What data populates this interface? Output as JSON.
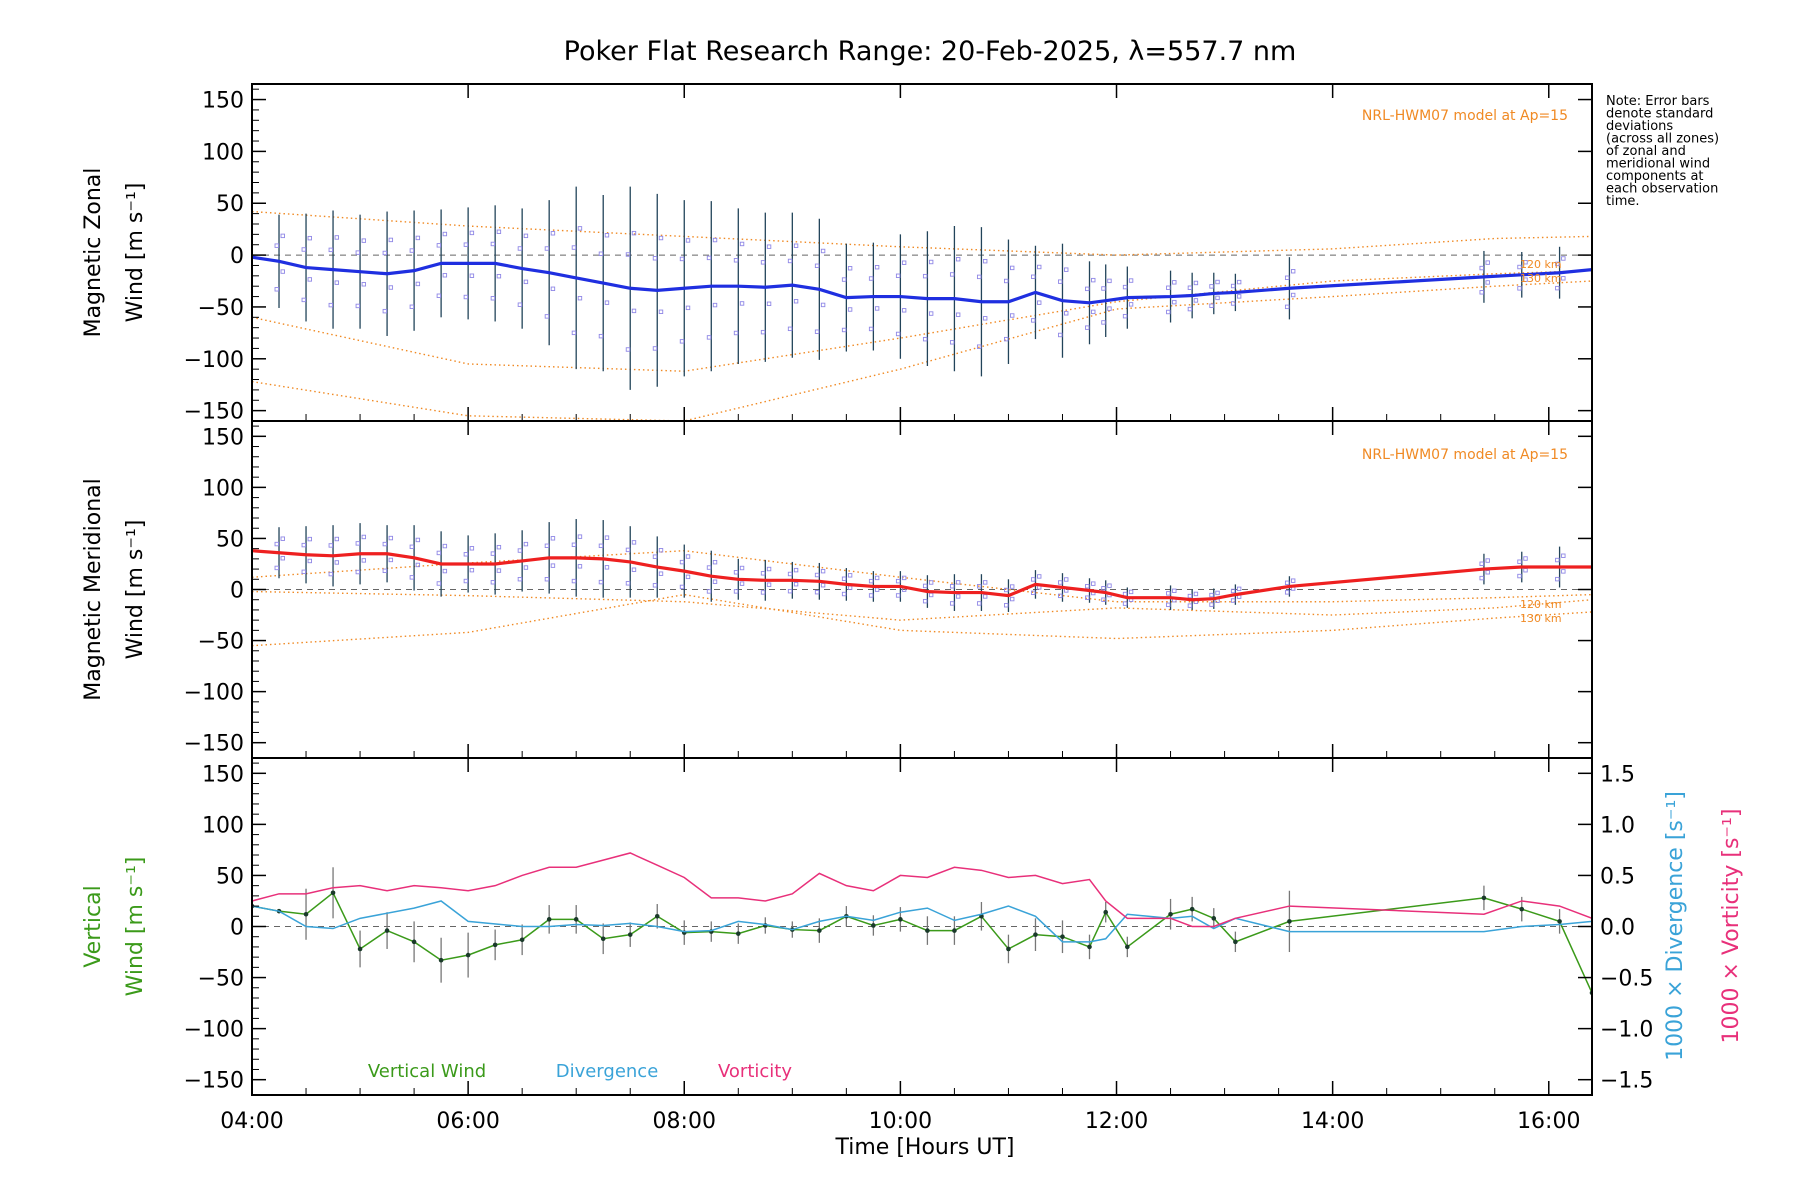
{
  "title": "Poker Flat Research Range: 20-Feb-2025, λ=557.7 nm",
  "note_lines": [
    "Note: Error bars",
    "denote standard",
    "deviations",
    "(across all zones)",
    "of zonal and",
    "meridional wind",
    "components at",
    "each observation",
    "time."
  ],
  "model_label": "NRL-HWM07 model at Ap=15",
  "km_labels": [
    "120 km",
    "130 km"
  ],
  "colors": {
    "zonal": "#1f2fe0",
    "meridional": "#ee2020",
    "vertical": "#3b9a1a",
    "divergence": "#3aa3d8",
    "vorticity": "#e8307a",
    "model": "#f08a24",
    "zones": "#8f87e6",
    "grid": "#000000"
  },
  "chart_data": [
    {
      "type": "line",
      "panel": "zonal",
      "ylabel_lines": [
        "Magnetic Zonal",
        "Wind [m s⁻¹]"
      ],
      "ylim": [
        -160,
        165
      ],
      "yticks": [
        -150,
        -100,
        -50,
        0,
        50,
        100,
        150
      ],
      "xlim": [
        4.0,
        16.4
      ],
      "series": [
        {
          "x": [
            4.0,
            4.25,
            4.5,
            4.75,
            5.0,
            5.25,
            5.5,
            5.75,
            6.0,
            6.25,
            6.5,
            6.75,
            7.0,
            7.25,
            7.5,
            7.75,
            8.0,
            8.25,
            8.5,
            8.75,
            9.0,
            9.25,
            9.5,
            9.75,
            10.0,
            10.25,
            10.5,
            10.75,
            11.0,
            11.25,
            11.5,
            11.75,
            11.9,
            12.1,
            12.5,
            12.7,
            12.9,
            13.1,
            13.6,
            15.4,
            15.75,
            16.1,
            16.4
          ],
          "values": [
            -2,
            -6,
            -12,
            -14,
            -16,
            -18,
            -15,
            -8,
            -8,
            -8,
            -13,
            -17,
            -22,
            -27,
            -32,
            -34,
            -32,
            -30,
            -30,
            -31,
            -29,
            -33,
            -41,
            -40,
            -40,
            -42,
            -42,
            -45,
            -45,
            -36,
            -44,
            -46,
            -44,
            -41,
            -40,
            -39,
            -37,
            -36,
            -32,
            -21,
            -19,
            -17,
            -14
          ]
        }
      ],
      "error_bars": {
        "x": [
          4.25,
          4.5,
          4.75,
          5.0,
          5.25,
          5.5,
          5.75,
          6.0,
          6.25,
          6.5,
          6.75,
          7.0,
          7.25,
          7.5,
          7.75,
          8.0,
          8.25,
          8.5,
          8.75,
          9.0,
          9.25,
          9.5,
          9.75,
          10.0,
          10.25,
          10.5,
          10.75,
          11.0,
          11.25,
          11.5,
          11.75,
          11.9,
          12.1,
          12.5,
          12.7,
          12.9,
          13.1,
          13.6,
          15.4,
          15.75,
          16.1
        ],
        "sd": [
          45,
          52,
          57,
          55,
          60,
          58,
          52,
          54,
          56,
          58,
          70,
          88,
          85,
          98,
          93,
          85,
          82,
          75,
          72,
          70,
          68,
          52,
          52,
          60,
          65,
          70,
          72,
          60,
          45,
          55,
          40,
          35,
          30,
          25,
          22,
          20,
          18,
          30,
          25,
          22,
          25
        ]
      },
      "model": {
        "x": [
          4.0,
          6.0,
          8.0,
          10.0,
          12.0,
          14.0,
          15.5,
          16.4
        ],
        "upper": [
          42,
          28,
          18,
          8,
          0,
          6,
          16,
          18
        ],
        "lower": [
          -60,
          -105,
          -112,
          -80,
          -45,
          -25,
          -18,
          -15
        ],
        "extra": [
          -122,
          -155,
          -160,
          -110,
          -52,
          -40,
          -30,
          -25
        ]
      }
    },
    {
      "type": "line",
      "panel": "meridional",
      "ylabel_lines": [
        "Magnetic Meridional",
        "Wind [m s⁻¹]"
      ],
      "ylim": [
        -165,
        165
      ],
      "yticks": [
        -150,
        -100,
        -50,
        0,
        50,
        100,
        150
      ],
      "xlim": [
        4.0,
        16.4
      ],
      "series": [
        {
          "x": [
            4.0,
            4.25,
            4.5,
            4.75,
            5.0,
            5.25,
            5.5,
            5.75,
            6.0,
            6.25,
            6.5,
            6.75,
            7.0,
            7.25,
            7.5,
            7.75,
            8.0,
            8.25,
            8.5,
            8.75,
            9.0,
            9.25,
            9.5,
            9.75,
            10.0,
            10.25,
            10.5,
            10.75,
            11.0,
            11.25,
            11.5,
            11.75,
            11.9,
            12.1,
            12.5,
            12.7,
            12.9,
            13.1,
            13.6,
            15.4,
            15.75,
            16.1,
            16.4
          ],
          "values": [
            38,
            36,
            34,
            33,
            35,
            35,
            31,
            25,
            25,
            25,
            28,
            31,
            31,
            30,
            27,
            22,
            18,
            13,
            10,
            9,
            9,
            8,
            5,
            3,
            3,
            -2,
            -3,
            -3,
            -6,
            5,
            2,
            -1,
            -3,
            -8,
            -8,
            -10,
            -9,
            -5,
            3,
            20,
            22,
            22,
            22
          ]
        }
      ],
      "error_bars": {
        "x": [
          4.25,
          4.5,
          4.75,
          5.0,
          5.25,
          5.5,
          5.75,
          6.0,
          6.25,
          6.5,
          6.75,
          7.0,
          7.25,
          7.5,
          7.75,
          8.0,
          8.25,
          8.5,
          8.75,
          9.0,
          9.25,
          9.5,
          9.75,
          10.0,
          10.25,
          10.5,
          10.75,
          11.0,
          11.25,
          11.5,
          11.75,
          11.9,
          12.1,
          12.5,
          12.7,
          12.9,
          13.1,
          13.6,
          15.4,
          15.75,
          16.1
        ],
        "sd": [
          25,
          28,
          30,
          30,
          28,
          32,
          32,
          28,
          30,
          30,
          35,
          38,
          38,
          35,
          30,
          26,
          25,
          20,
          20,
          18,
          18,
          16,
          15,
          15,
          16,
          18,
          18,
          16,
          14,
          14,
          12,
          12,
          10,
          12,
          10,
          10,
          10,
          10,
          15,
          15,
          20
        ]
      },
      "model": {
        "x": [
          4.0,
          6.0,
          8.0,
          10.0,
          12.0,
          14.0,
          15.5,
          16.4
        ],
        "upper": [
          12,
          26,
          38,
          12,
          -12,
          -12,
          -8,
          -5
        ],
        "lower": [
          -55,
          -42,
          -5,
          -40,
          -48,
          -40,
          -28,
          -22
        ],
        "extra": [
          -2,
          -6,
          -12,
          -30,
          -18,
          -25,
          -18,
          -10
        ]
      }
    },
    {
      "type": "line",
      "panel": "vertical",
      "ylabel_lines": [
        "Vertical",
        "Wind [m s⁻¹]"
      ],
      "right_label_divergence": "1000 × Divergence [s⁻¹]",
      "right_label_vorticity": "1000 × Vorticity [s⁻¹]",
      "xlabel": "Time [Hours UT]",
      "ylim": [
        -165,
        165
      ],
      "yticks": [
        -150,
        -100,
        -50,
        0,
        50,
        100,
        150
      ],
      "y2lim": [
        -1.65,
        1.65
      ],
      "y2ticks": [
        -1.5,
        -1.0,
        -0.5,
        0.0,
        0.5,
        1.0,
        1.5
      ],
      "y2ticklabels": [
        "−1.5",
        "−1.0",
        "−0.5",
        "0.0",
        "0.5",
        "1.0",
        "1.5"
      ],
      "xlim": [
        4.0,
        16.4
      ],
      "xticks": [
        4,
        6,
        8,
        10,
        12,
        14,
        16
      ],
      "xticklabels": [
        "04:00",
        "06:00",
        "08:00",
        "10:00",
        "12:00",
        "14:00",
        "16:00"
      ],
      "legend": [
        "Vertical Wind",
        "Divergence",
        "Vorticity"
      ],
      "series": [
        {
          "name": "Vertical Wind",
          "x": [
            4.0,
            4.25,
            4.5,
            4.75,
            5.0,
            5.25,
            5.5,
            5.75,
            6.0,
            6.25,
            6.5,
            6.75,
            7.0,
            7.25,
            7.5,
            7.75,
            8.0,
            8.25,
            8.5,
            8.75,
            9.0,
            9.25,
            9.5,
            9.75,
            10.0,
            10.25,
            10.5,
            10.75,
            11.0,
            11.25,
            11.5,
            11.75,
            11.9,
            12.1,
            12.5,
            12.7,
            12.9,
            13.1,
            13.6,
            15.4,
            15.75,
            16.1,
            16.4
          ],
          "values": [
            20,
            15,
            12,
            33,
            -22,
            -4,
            -15,
            -33,
            -28,
            -18,
            -13,
            7,
            7,
            -12,
            -8,
            10,
            -6,
            -5,
            -7,
            1,
            -3,
            -4,
            10,
            1,
            7,
            -4,
            -4,
            10,
            -22,
            -8,
            -10,
            -20,
            14,
            -20,
            12,
            17,
            8,
            -15,
            5,
            28,
            17,
            5,
            -65
          ]
        },
        {
          "name": "Divergence",
          "x": [
            4.0,
            4.25,
            4.5,
            4.75,
            5.0,
            5.5,
            5.75,
            6.0,
            6.5,
            6.75,
            7.0,
            7.25,
            7.5,
            7.75,
            8.0,
            8.25,
            8.5,
            8.75,
            9.0,
            9.25,
            9.5,
            9.75,
            10.0,
            10.25,
            10.5,
            10.75,
            11.0,
            11.25,
            11.5,
            11.75,
            11.9,
            12.1,
            12.5,
            12.7,
            12.9,
            13.1,
            13.6,
            15.4,
            15.75,
            16.1,
            16.4
          ],
          "values": [
            0.2,
            0.15,
            0.0,
            -0.02,
            0.08,
            0.18,
            0.25,
            0.05,
            0.0,
            0.0,
            0.02,
            0.01,
            0.03,
            0.0,
            -0.05,
            -0.04,
            0.05,
            0.02,
            -0.03,
            0.05,
            0.1,
            0.06,
            0.14,
            0.18,
            0.06,
            0.12,
            0.2,
            0.1,
            -0.15,
            -0.15,
            -0.12,
            0.12,
            0.08,
            0.1,
            -0.02,
            0.08,
            -0.05,
            -0.05,
            0.0,
            0.02,
            0.05
          ]
        },
        {
          "name": "Vorticity",
          "x": [
            4.0,
            4.25,
            4.5,
            4.75,
            5.0,
            5.25,
            5.5,
            5.75,
            6.0,
            6.25,
            6.5,
            6.75,
            7.0,
            7.25,
            7.5,
            7.75,
            8.0,
            8.25,
            8.5,
            8.75,
            9.0,
            9.25,
            9.5,
            9.75,
            10.0,
            10.25,
            10.5,
            10.75,
            11.0,
            11.25,
            11.5,
            11.75,
            11.9,
            12.1,
            12.5,
            12.7,
            12.9,
            13.1,
            13.6,
            15.4,
            15.75,
            16.1,
            16.4
          ],
          "values": [
            0.25,
            0.32,
            0.32,
            0.38,
            0.4,
            0.35,
            0.4,
            0.38,
            0.35,
            0.4,
            0.5,
            0.58,
            0.58,
            0.65,
            0.72,
            0.6,
            0.48,
            0.28,
            0.28,
            0.25,
            0.32,
            0.52,
            0.4,
            0.35,
            0.5,
            0.48,
            0.58,
            0.55,
            0.48,
            0.5,
            0.42,
            0.46,
            0.25,
            0.08,
            0.08,
            0.0,
            0.0,
            0.08,
            0.2,
            0.12,
            0.25,
            0.2,
            0.08
          ]
        }
      ],
      "error_bars": {
        "x": [
          4.5,
          4.75,
          5.0,
          5.25,
          5.5,
          5.75,
          6.0,
          6.25,
          6.5,
          6.75,
          7.0,
          7.25,
          7.5,
          7.75,
          8.0,
          8.25,
          8.5,
          8.75,
          9.0,
          9.25,
          9.5,
          9.75,
          10.0,
          10.25,
          10.5,
          10.75,
          11.0,
          11.25,
          11.5,
          11.75,
          11.9,
          12.1,
          12.5,
          12.7,
          12.9,
          13.1,
          13.6,
          15.4,
          15.75,
          16.1
        ],
        "sd": [
          25,
          25,
          18,
          18,
          20,
          22,
          22,
          15,
          15,
          14,
          14,
          15,
          12,
          12,
          12,
          10,
          10,
          8,
          8,
          12,
          10,
          10,
          12,
          14,
          14,
          14,
          14,
          16,
          16,
          12,
          10,
          10,
          15,
          12,
          10,
          10,
          30,
          12,
          12,
          12
        ]
      }
    }
  ]
}
